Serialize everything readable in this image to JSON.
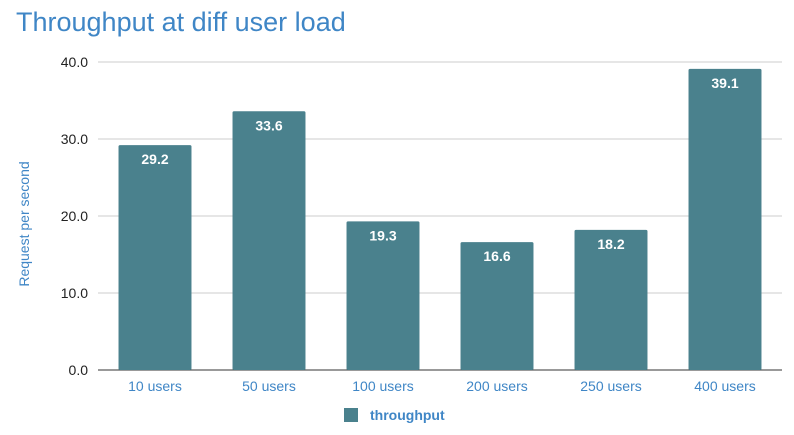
{
  "chart_data": {
    "type": "bar",
    "title": "Throughput at diff user load",
    "xlabel": "",
    "ylabel": "Request per second",
    "categories": [
      "10 users",
      "50 users",
      "100 users",
      "200 users",
      "250 users",
      "400 users"
    ],
    "series": [
      {
        "name": "throughput",
        "values": [
          29.2,
          33.6,
          19.3,
          16.6,
          18.2,
          39.1
        ],
        "color": "#4a818d"
      }
    ],
    "ylim": [
      0,
      40
    ],
    "yticks": [
      "0.0",
      "10.0",
      "20.0",
      "30.0",
      "40.0"
    ],
    "data_labels": [
      "29.2",
      "33.6",
      "19.3",
      "16.6",
      "18.2",
      "39.1"
    ],
    "grid": true,
    "legend_position": "bottom"
  }
}
